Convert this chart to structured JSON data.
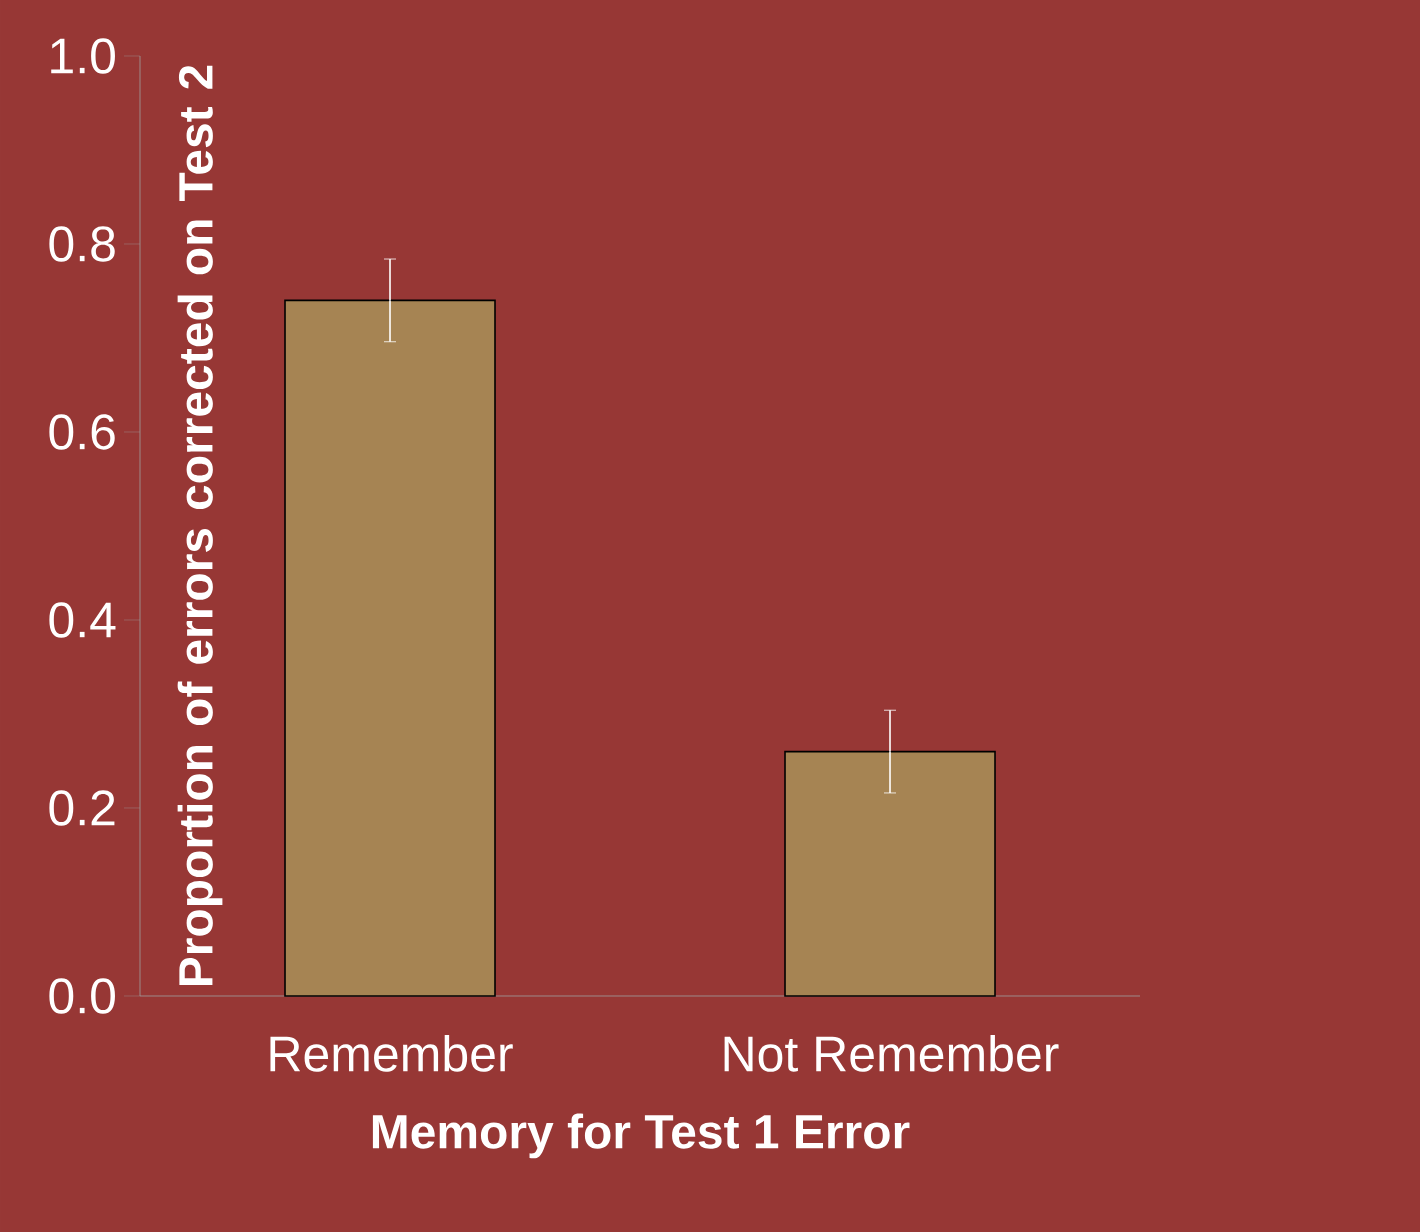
{
  "chart_data": {
    "type": "bar",
    "xlabel": "Memory for Test 1 Error",
    "ylabel": "Proportion of errors corrected on Test 2",
    "categories": [
      "Remember",
      "Not Remember"
    ],
    "values": [
      0.74,
      0.26
    ],
    "errors": [
      0.044,
      0.044
    ],
    "color": "#a68453",
    "ylim": [
      0,
      1
    ],
    "yticks": [
      {
        "value": 0,
        "label": "0.0"
      },
      0.2,
      0.4,
      0.6,
      0.8,
      {
        "value": 1,
        "label": "1.0"
      }
    ],
    "grid": false
  }
}
